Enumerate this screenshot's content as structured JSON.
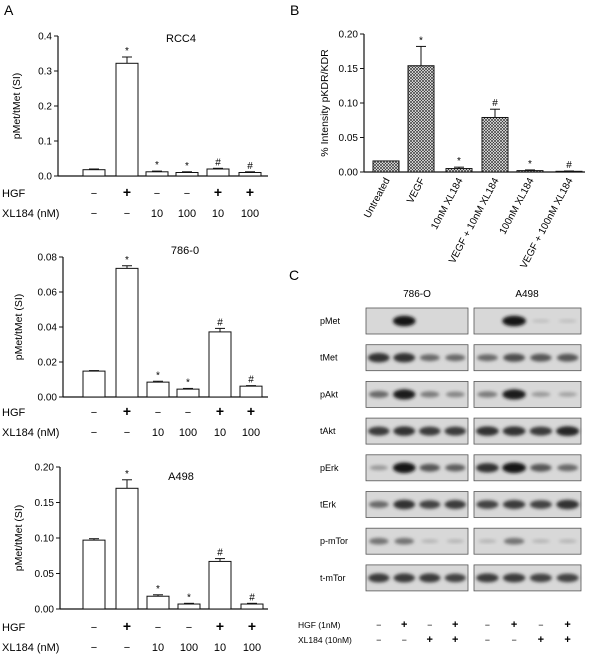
{
  "panel_letters": {
    "a": "A",
    "b": "B",
    "c": "C"
  },
  "colors": {
    "axis": "#111111",
    "bar_fill": "#ffffff",
    "hatch": "#333333",
    "blot_bg": "#d8d8d8"
  },
  "chart_data": [
    {
      "type": "bar",
      "title": "RCC4",
      "ylabel": "pMet/tMet (SI)",
      "ylim": [
        0,
        0.4
      ],
      "yticks": [
        "0.0",
        "0.1",
        "0.2",
        "0.3",
        "0.4"
      ],
      "yticks_values": [
        0,
        0.1,
        0.2,
        0.3,
        0.4
      ],
      "values": [
        0.018,
        0.322,
        0.012,
        0.01,
        0.02,
        0.01
      ],
      "errors": [
        0.002,
        0.018,
        0.002,
        0.002,
        0.002,
        0.002
      ],
      "annotations": [
        "",
        "*",
        "*",
        "*",
        "#",
        "#"
      ],
      "treatment_rows": [
        {
          "label": "HGF",
          "cells": [
            "−",
            "+",
            "−",
            "−",
            "+",
            "+"
          ]
        },
        {
          "label": "XL184 (nM)",
          "cells": [
            "−",
            "−",
            "10",
            "100",
            "10",
            "100"
          ]
        }
      ]
    },
    {
      "type": "bar",
      "title": "786-0",
      "ylabel": "pMet/tMet (SI)",
      "ylim": [
        0,
        0.08
      ],
      "yticks": [
        "0.00",
        "0.02",
        "0.04",
        "0.06",
        "0.08"
      ],
      "yticks_values": [
        0,
        0.02,
        0.04,
        0.06,
        0.08
      ],
      "values": [
        0.0148,
        0.0735,
        0.0085,
        0.0045,
        0.0372,
        0.0062
      ],
      "errors": [
        0.0003,
        0.0015,
        0.0005,
        0.0004,
        0.002,
        0.0003
      ],
      "annotations": [
        "",
        "*",
        "*",
        "*",
        "#",
        "#"
      ],
      "treatment_rows": [
        {
          "label": "HGF",
          "cells": [
            "−",
            "+",
            "−",
            "−",
            "+",
            "+"
          ]
        },
        {
          "label": "XL184 (nM)",
          "cells": [
            "−",
            "−",
            "10",
            "100",
            "10",
            "100"
          ]
        }
      ]
    },
    {
      "type": "bar",
      "title": "A498",
      "ylabel": "pMet/tMet (SI)",
      "ylim": [
        0,
        0.2
      ],
      "yticks": [
        "0.00",
        "0.05",
        "0.10",
        "0.15",
        "0.20"
      ],
      "yticks_values": [
        0,
        0.05,
        0.1,
        0.15,
        0.2
      ],
      "values": [
        0.097,
        0.17,
        0.018,
        0.007,
        0.067,
        0.007
      ],
      "errors": [
        0.002,
        0.012,
        0.002,
        0.001,
        0.004,
        0.001
      ],
      "annotations": [
        "",
        "*",
        "*",
        "*",
        "#",
        "#"
      ],
      "treatment_rows": [
        {
          "label": "HGF",
          "cells": [
            "−",
            "+",
            "−",
            "−",
            "+",
            "+"
          ]
        },
        {
          "label": "XL184 (nM)",
          "cells": [
            "−",
            "−",
            "10",
            "100",
            "10",
            "100"
          ]
        }
      ]
    },
    {
      "type": "bar",
      "ylabel": "% Intensity pKDR/KDR",
      "ylim": [
        0,
        0.2
      ],
      "yticks": [
        "0.00",
        "0.05",
        "0.10",
        "0.15",
        "0.20"
      ],
      "yticks_values": [
        0,
        0.05,
        0.1,
        0.15,
        0.2
      ],
      "categories": [
        "Untreated",
        "VEGF",
        "10nM XL184",
        "VEGF + 10nM XL184",
        "100nM XL184",
        "VEGF + 100nM XL184"
      ],
      "values": [
        0.016,
        0.154,
        0.005,
        0.079,
        0.002,
        0.001
      ],
      "errors": [
        0.0,
        0.028,
        0.002,
        0.012,
        0.001,
        0.0005
      ],
      "annotations": [
        "",
        "*",
        "*",
        "#",
        "*",
        "#"
      ]
    }
  ],
  "blots": {
    "cell_lines": [
      "786-O",
      "A498"
    ],
    "rows": [
      {
        "label": "pMet",
        "levels": [
          [
            0.0,
            0.95,
            0.0,
            0.0
          ],
          [
            0.0,
            0.95,
            0.05,
            0.05
          ]
        ]
      },
      {
        "label": "tMet",
        "levels": [
          [
            0.8,
            0.8,
            0.5,
            0.5
          ],
          [
            0.5,
            0.65,
            0.6,
            0.6
          ]
        ]
      },
      {
        "label": "pAkt",
        "levels": [
          [
            0.5,
            0.9,
            0.4,
            0.35
          ],
          [
            0.4,
            0.9,
            0.25,
            0.2
          ]
        ]
      },
      {
        "label": "tAkt",
        "levels": [
          [
            0.75,
            0.8,
            0.75,
            0.75
          ],
          [
            0.8,
            0.8,
            0.75,
            0.85
          ]
        ]
      },
      {
        "label": "pErk",
        "levels": [
          [
            0.25,
            0.95,
            0.6,
            0.55
          ],
          [
            0.8,
            0.95,
            0.6,
            0.5
          ]
        ]
      },
      {
        "label": "tErk",
        "levels": [
          [
            0.5,
            0.8,
            0.7,
            0.75
          ],
          [
            0.7,
            0.75,
            0.7,
            0.8
          ]
        ]
      },
      {
        "label": "p-mTor",
        "levels": [
          [
            0.45,
            0.45,
            0.1,
            0.1
          ],
          [
            0.1,
            0.45,
            0.1,
            0.1
          ]
        ]
      },
      {
        "label": "t-mTor",
        "levels": [
          [
            0.75,
            0.75,
            0.75,
            0.7
          ],
          [
            0.75,
            0.75,
            0.7,
            0.7
          ]
        ]
      }
    ],
    "treatment_rows": [
      {
        "label": "HGF (1nM)",
        "cells": [
          "−",
          "+",
          "−",
          "+",
          "−",
          "+",
          "−",
          "+"
        ]
      },
      {
        "label": "XL184 (10nM)",
        "cells": [
          "−",
          "−",
          "+",
          "+",
          "−",
          "−",
          "+",
          "+"
        ]
      }
    ]
  }
}
